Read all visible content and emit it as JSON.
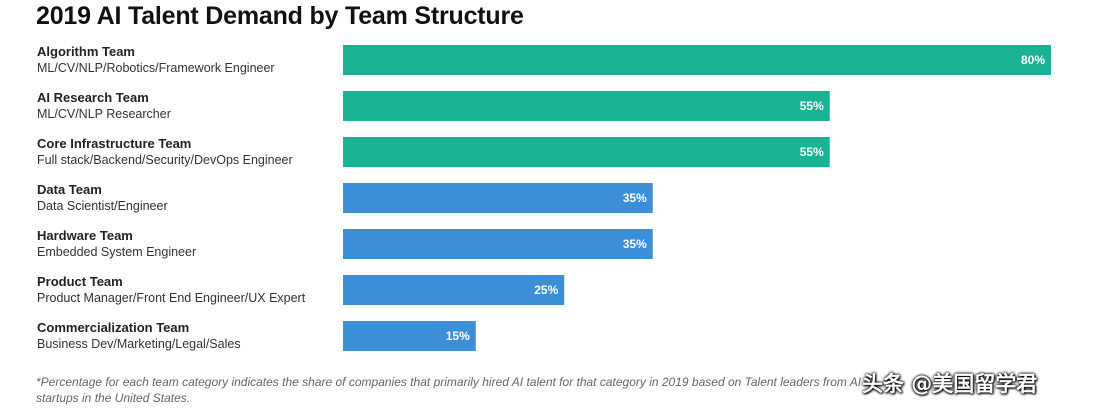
{
  "chart_data": {
    "type": "bar",
    "orientation": "horizontal",
    "title": "2019 AI Talent Demand by Team Structure",
    "xlim": [
      0,
      80
    ],
    "categories": [
      {
        "name": "Algorithm Team",
        "sub": "ML/CV/NLP/Robotics/Framework Engineer",
        "value": 80,
        "label": "80%",
        "color": "#1ab394"
      },
      {
        "name": "AI Research Team",
        "sub": "ML/CV/NLP Researcher",
        "value": 55,
        "label": "55%",
        "color": "#1ab394"
      },
      {
        "name": "Core Infrastructure Team",
        "sub": "Full stack/Backend/Security/DevOps Engineer",
        "value": 55,
        "label": "55%",
        "color": "#1ab394"
      },
      {
        "name": "Data Team",
        "sub": "Data Scientist/Engineer",
        "value": 35,
        "label": "35%",
        "color": "#3a8fd6"
      },
      {
        "name": "Hardware Team",
        "sub": "Embedded System Engineer",
        "value": 35,
        "label": "35%",
        "color": "#3a8fd6"
      },
      {
        "name": "Product Team",
        "sub": "Product Manager/Front End Engineer/UX Expert",
        "value": 25,
        "label": "25%",
        "color": "#3a8fd6"
      },
      {
        "name": "Commercialization Team",
        "sub": "Business Dev/Marketing/Legal/Sales",
        "value": 15,
        "label": "15%",
        "color": "#3a8fd6"
      }
    ]
  },
  "footnote": "*Percentage for each team category indicates the share of companies that primarily hired AI talent for that category in 2019 based on Talent leaders from AI startups in the United States.",
  "watermark": "头条 @美国留学君"
}
